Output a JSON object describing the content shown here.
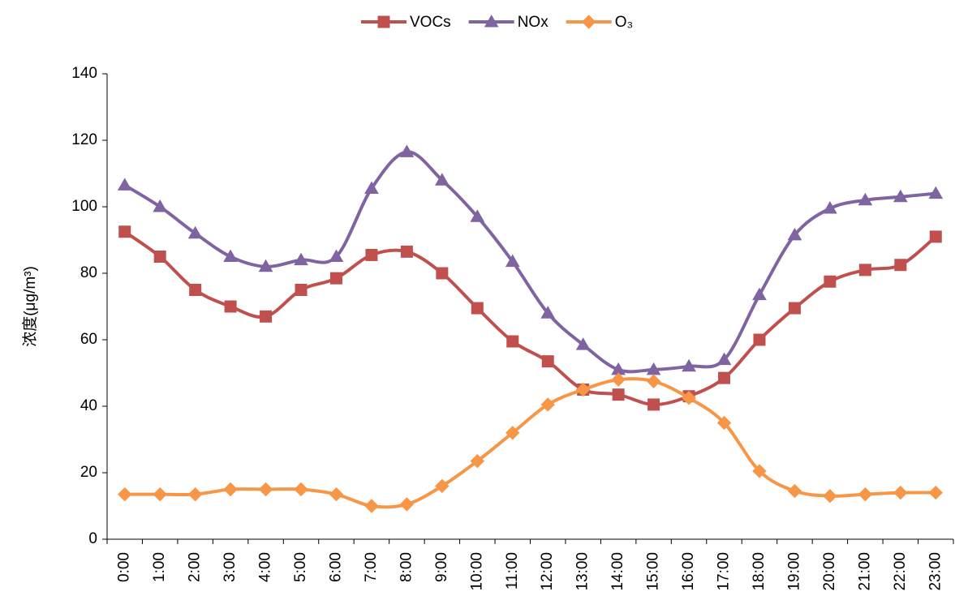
{
  "chart_data": {
    "type": "line",
    "y_label": "浓度(μg/m³)",
    "categories": [
      "0:00",
      "1:00",
      "2:00",
      "3:00",
      "4:00",
      "5:00",
      "6:00",
      "7:00",
      "8:00",
      "9:00",
      "10:00",
      "11:00",
      "12:00",
      "13:00",
      "14:00",
      "15:00",
      "16:00",
      "17:00",
      "18:00",
      "19:00",
      "20:00",
      "21:00",
      "22:00",
      "23:00"
    ],
    "series": [
      {
        "name": "VOCs",
        "color": "#c0504d",
        "marker": "square",
        "values": [
          92.5,
          85,
          75,
          70,
          67,
          75,
          78.5,
          85.5,
          86.5,
          80,
          69.5,
          59.5,
          53.5,
          45,
          43.5,
          40.5,
          43,
          48.5,
          60,
          69.5,
          77.5,
          81,
          82.5,
          91
        ]
      },
      {
        "name": "NOx",
        "color": "#8064a2",
        "marker": "triangle",
        "values": [
          106.5,
          100,
          92,
          85,
          82,
          84,
          85,
          105.5,
          116.5,
          108,
          97,
          83.5,
          68,
          58.5,
          51,
          51,
          52,
          54,
          73.5,
          91.5,
          99.5,
          102,
          103,
          104
        ]
      },
      {
        "name": "O₃",
        "color": "#f79646",
        "marker": "diamond",
        "values": [
          13.5,
          13.5,
          13.5,
          15,
          15,
          15,
          13.5,
          10,
          10.5,
          16,
          23.5,
          32,
          40.5,
          45,
          48,
          47.5,
          42.5,
          35,
          20.5,
          14.5,
          13,
          13.5,
          14,
          14
        ]
      }
    ],
    "ylim": [
      0,
      140
    ],
    "yticks": [
      0,
      20,
      40,
      60,
      80,
      100,
      120,
      140
    ],
    "legend": "top",
    "smooth": true
  }
}
